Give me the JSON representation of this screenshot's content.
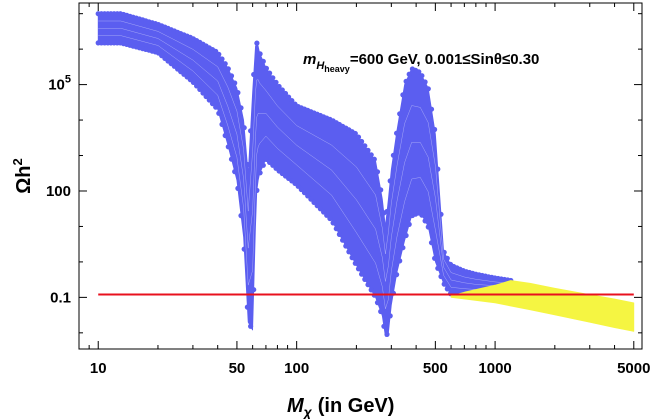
{
  "chart_data": {
    "type": "scatter",
    "title": "",
    "xlabel_prefix": "M",
    "xlabel_sub": "χ",
    "xlabel_suffix": "(in GeV)",
    "ylabel_main": "Ωh",
    "ylabel_sup": "2",
    "annotation_m": "m",
    "annotation_H": "H",
    "annotation_heavy": "heavy",
    "annotation_rest": "=600 GeV, 0.001≤Sinθ≤0.30",
    "x_scale": "log",
    "y_scale": "log",
    "xlim": [
      8,
      5500
    ],
    "ylim": [
      0.0035,
      20000000.0
    ],
    "x_ticks": [
      10,
      50,
      100,
      500,
      1000,
      5000
    ],
    "x_tick_labels": [
      "10",
      "50",
      "100",
      "500",
      "1000",
      "5000"
    ],
    "y_ticks": [
      0.1,
      100,
      100000
    ],
    "y_tick_labels": [
      "0.1",
      "100",
      "10^5"
    ],
    "colors": {
      "scan_points": "#5b5ef0",
      "allowed_points": "#f5f542",
      "relic_line": "#e8101e"
    },
    "relic_density_line": {
      "y": 0.12,
      "x_range": [
        10,
        5000
      ]
    },
    "series": [
      {
        "name": "Omega h^2 scan, upper envelope",
        "x": [
          10,
          13,
          20,
          30,
          40,
          45,
          50,
          54,
          57,
          60,
          62,
          63,
          64,
          65,
          70,
          80,
          100,
          150,
          200,
          250,
          270,
          280,
          290,
          300,
          320,
          350,
          380,
          420,
          460,
          500,
          550,
          600,
          700,
          800,
          1000,
          1200
        ],
        "y": [
          10000000.0,
          10000000.0,
          5000000.0,
          2000000.0,
          800000.0,
          300000.0,
          80000.0,
          10000.0,
          300,
          60000.0,
          1200000.0,
          1500000.0,
          1200000.0,
          800000.0,
          300000.0,
          100000.0,
          25000.0,
          10000.0,
          4000,
          700,
          60,
          10,
          60,
          400,
          5000,
          100000.0,
          280000.0,
          220000.0,
          80000.0,
          4000,
          2,
          0.8,
          0.55,
          0.45,
          0.35,
          0.3
        ]
      },
      {
        "name": "Omega h^2 scan, lower envelope",
        "x": [
          10,
          13,
          20,
          30,
          40,
          45,
          50,
          54,
          57,
          60,
          62,
          63,
          64,
          65,
          70,
          80,
          100,
          150,
          200,
          250,
          270,
          280,
          290,
          300,
          320,
          350,
          380,
          420,
          460,
          500,
          550,
          600,
          700,
          800,
          1000,
          1200
        ],
        "y": [
          1500000.0,
          1500000.0,
          800000.0,
          120000.0,
          20000.0,
          2000,
          200,
          5,
          0.02,
          0.012,
          10,
          100,
          200,
          300,
          800,
          400,
          150,
          15,
          0.8,
          0.1,
          0.03,
          0.008,
          0.01,
          0.06,
          0.5,
          4,
          20,
          25,
          10,
          1,
          0.25,
          0.12,
          0.12,
          0.12,
          0.13,
          0.14
        ]
      },
      {
        "name": "Relic-density-allowed region, upper edge",
        "x": [
          600,
          700,
          1000,
          1200,
          1500,
          2000,
          3000,
          4000,
          5000
        ],
        "y": [
          0.11,
          0.14,
          0.22,
          0.3,
          0.25,
          0.18,
          0.12,
          0.09,
          0.07
        ]
      },
      {
        "name": "Relic-density-allowed region, lower edge",
        "x": [
          600,
          700,
          1000,
          1500,
          2000,
          3000,
          4000,
          5000
        ],
        "y": [
          0.1,
          0.09,
          0.07,
          0.045,
          0.032,
          0.02,
          0.014,
          0.011
        ]
      }
    ]
  }
}
